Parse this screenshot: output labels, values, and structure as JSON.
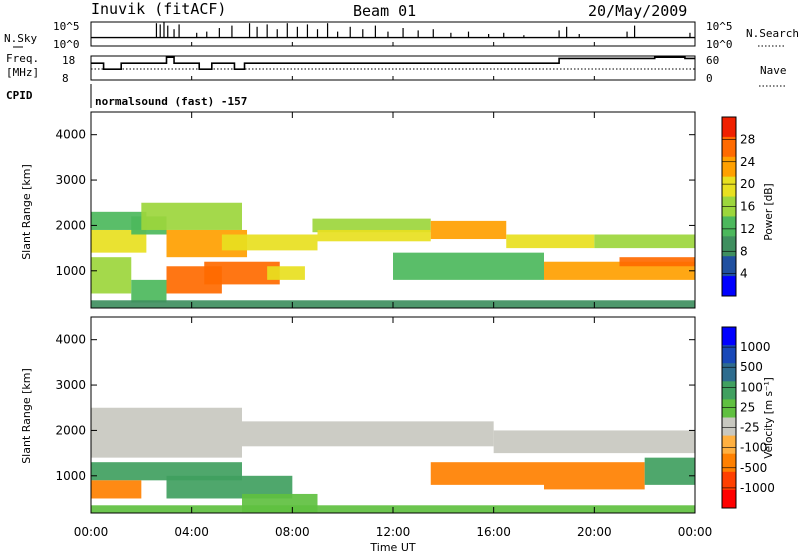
{
  "header": {
    "station": "Inuvik (fitACF)",
    "beam": "Beam 01",
    "date": "20/May/2009"
  },
  "noise_panel": {
    "left_label": "N.Sky",
    "right_label": "N.Search",
    "y_ticks": [
      "10^5",
      "10^0"
    ],
    "right_ticks": [
      "10^5",
      "10^0"
    ],
    "sky_level": 0.35,
    "spikes": [
      [
        2.6,
        0.95
      ],
      [
        2.75,
        0.9
      ],
      [
        2.9,
        1
      ],
      [
        3.05,
        0.85
      ],
      [
        3.3,
        0.7
      ],
      [
        3.5,
        0.9
      ],
      [
        4.2,
        0.55
      ],
      [
        4.6,
        0.6
      ],
      [
        5.1,
        0.75
      ],
      [
        5.6,
        0.85
      ],
      [
        6.3,
        0.95
      ],
      [
        6.6,
        0.8
      ],
      [
        7.0,
        0.9
      ],
      [
        7.4,
        0.7
      ],
      [
        7.8,
        0.95
      ],
      [
        8.2,
        0.8
      ],
      [
        8.6,
        0.9
      ],
      [
        9.0,
        0.7
      ],
      [
        9.4,
        0.95
      ],
      [
        9.8,
        0.6
      ],
      [
        10.3,
        0.8
      ],
      [
        10.8,
        0.7
      ],
      [
        11.3,
        0.85
      ],
      [
        11.8,
        0.6
      ],
      [
        12.4,
        0.75
      ],
      [
        13.0,
        0.65
      ],
      [
        13.6,
        0.7
      ],
      [
        14.3,
        0.55
      ],
      [
        15.0,
        0.6
      ],
      [
        15.8,
        0.5
      ],
      [
        16.4,
        0.55
      ],
      [
        17.2,
        0.45
      ],
      [
        18.6,
        0.65
      ],
      [
        18.9,
        0.8
      ],
      [
        19.4,
        0.5
      ],
      [
        21.3,
        0.6
      ],
      [
        21.6,
        0.85
      ],
      [
        23.8,
        0.55
      ]
    ]
  },
  "freq_panel": {
    "left_label_1": "Freq.",
    "left_label_2": "[MHz]",
    "right_label": "Nave",
    "y_ticks": [
      "18",
      "8"
    ],
    "right_ticks": [
      "60",
      "0"
    ],
    "cpid_label": "CPID",
    "cpid_value": "normalsound (fast) -157",
    "freq_steps": [
      [
        0,
        0.7
      ],
      [
        0.5,
        0.45
      ],
      [
        1.2,
        0.7
      ],
      [
        3.0,
        0.95
      ],
      [
        3.3,
        0.7
      ],
      [
        3.8,
        0.7
      ],
      [
        4.3,
        0.45
      ],
      [
        4.8,
        0.7
      ],
      [
        5.7,
        0.45
      ],
      [
        6.1,
        0.7
      ],
      [
        18.4,
        0.7
      ],
      [
        18.6,
        0.9
      ],
      [
        22.4,
        0.95
      ],
      [
        23.6,
        0.9
      ],
      [
        24,
        0.9
      ]
    ],
    "nave_level": 0.5
  },
  "time_axis": {
    "ticks": [
      "00:00",
      "04:00",
      "08:00",
      "12:00",
      "16:00",
      "20:00",
      "00:00"
    ],
    "label": "Time UT"
  },
  "power_colorbar": {
    "label": "Power [dB]",
    "colors": [
      "#0000ff",
      "#2050a0",
      "#3f8f5f",
      "#4cb85c",
      "#9cd63c",
      "#e8e020",
      "#ffa000",
      "#ff6a00",
      "#f02000"
    ],
    "ticks": [
      "28",
      "24",
      "20",
      "16",
      "12",
      "8",
      "4"
    ]
  },
  "velocity_colorbar": {
    "label": "Velocity [m s⁻¹]",
    "colors": [
      "#ff0000",
      "#ff4000",
      "#ff8000",
      "#ffb040",
      "#c8c8c0",
      "#60c040",
      "#40a060",
      "#2e6c8e",
      "#1848b8",
      "#0000ff"
    ],
    "ticks": [
      "1000",
      "500",
      "100",
      "25",
      "-25",
      "-100",
      "-500",
      "-1000"
    ]
  },
  "chart_data": [
    {
      "type": "heatmap",
      "title": "Power",
      "xlabel": "Time UT",
      "ylabel": "Slant Range [km]",
      "x_range_hours": [
        0,
        24
      ],
      "ylim": [
        180,
        4500
      ],
      "y_ticks": [
        1000,
        2000,
        3000,
        4000
      ],
      "colorbar_ticks_db": [
        4,
        8,
        12,
        16,
        20,
        24,
        28
      ],
      "colorbar_range_db": [
        0,
        32
      ],
      "bands": [
        {
          "t0": 0.0,
          "t1": 2.2,
          "r0": 1400,
          "r1": 1900,
          "power": 20
        },
        {
          "t0": 0.0,
          "t1": 2.2,
          "r0": 1900,
          "r1": 2300,
          "power": 12
        },
        {
          "t0": 1.6,
          "t1": 3.0,
          "r0": 1800,
          "r1": 2200,
          "power": 14
        },
        {
          "t0": 2.0,
          "t1": 6.0,
          "r0": 1900,
          "r1": 2500,
          "power": 16
        },
        {
          "t0": 3.0,
          "t1": 6.2,
          "r0": 1300,
          "r1": 1900,
          "power": 24
        },
        {
          "t0": 3.0,
          "t1": 5.2,
          "r0": 500,
          "r1": 1100,
          "power": 28
        },
        {
          "t0": 4.5,
          "t1": 7.5,
          "r0": 700,
          "r1": 1200,
          "power": 26
        },
        {
          "t0": 7.0,
          "t1": 8.5,
          "r0": 800,
          "r1": 1100,
          "power": 20
        },
        {
          "t0": 0.0,
          "t1": 1.6,
          "r0": 500,
          "r1": 1300,
          "power": 16
        },
        {
          "t0": 1.6,
          "t1": 3.0,
          "r0": 300,
          "r1": 800,
          "power": 12
        },
        {
          "t0": 5.2,
          "t1": 9.0,
          "r0": 1450,
          "r1": 1800,
          "power": 20
        },
        {
          "t0": 8.8,
          "t1": 13.5,
          "r0": 1850,
          "r1": 2150,
          "power": 16
        },
        {
          "t0": 9.0,
          "t1": 13.5,
          "r0": 1650,
          "r1": 1900,
          "power": 20
        },
        {
          "t0": 13.5,
          "t1": 16.5,
          "r0": 1700,
          "r1": 2100,
          "power": 22
        },
        {
          "t0": 16.5,
          "t1": 20.0,
          "r0": 1500,
          "r1": 1800,
          "power": 20
        },
        {
          "t0": 20.0,
          "t1": 24.0,
          "r0": 1500,
          "r1": 1800,
          "power": 16
        },
        {
          "t0": 12.0,
          "t1": 18.0,
          "r0": 800,
          "r1": 1400,
          "power": 14
        },
        {
          "t0": 18.0,
          "t1": 24.0,
          "r0": 800,
          "r1": 1200,
          "power": 24
        },
        {
          "t0": 21.0,
          "t1": 24.0,
          "r0": 1100,
          "r1": 1300,
          "power": 28
        },
        {
          "t0": 0.0,
          "t1": 24.0,
          "r0": 180,
          "r1": 350,
          "power": 8
        }
      ]
    },
    {
      "type": "heatmap",
      "title": "Velocity",
      "xlabel": "Time UT",
      "ylabel": "Slant Range [km]",
      "x_range_hours": [
        0,
        24
      ],
      "ylim": [
        180,
        4500
      ],
      "y_ticks": [
        1000,
        2000,
        3000,
        4000
      ],
      "colorbar_ticks_ms": [
        -1000,
        -500,
        -100,
        -25,
        25,
        100,
        500,
        1000
      ],
      "bands": [
        {
          "t0": 0.0,
          "t1": 6.0,
          "r0": 1400,
          "r1": 2500,
          "velocity": 0
        },
        {
          "t0": 0.0,
          "t1": 6.0,
          "r0": 900,
          "r1": 1300,
          "velocity": 300
        },
        {
          "t0": 3.0,
          "t1": 8.0,
          "r0": 500,
          "r1": 1000,
          "velocity": 400
        },
        {
          "t0": 0.0,
          "t1": 2.0,
          "r0": 500,
          "r1": 900,
          "velocity": -300
        },
        {
          "t0": 6.0,
          "t1": 9.0,
          "r0": 200,
          "r1": 600,
          "velocity": 60
        },
        {
          "t0": 6.0,
          "t1": 16.0,
          "r0": 1650,
          "r1": 2200,
          "velocity": 0
        },
        {
          "t0": 16.0,
          "t1": 24.0,
          "r0": 1500,
          "r1": 2000,
          "velocity": 0
        },
        {
          "t0": 13.5,
          "t1": 18.0,
          "r0": 800,
          "r1": 1300,
          "velocity": -300
        },
        {
          "t0": 18.0,
          "t1": 22.0,
          "r0": 700,
          "r1": 1300,
          "velocity": -400
        },
        {
          "t0": 22.0,
          "t1": 24.0,
          "r0": 800,
          "r1": 1400,
          "velocity": 300
        },
        {
          "t0": 0.0,
          "t1": 24.0,
          "r0": 180,
          "r1": 350,
          "velocity": 60
        }
      ]
    }
  ]
}
